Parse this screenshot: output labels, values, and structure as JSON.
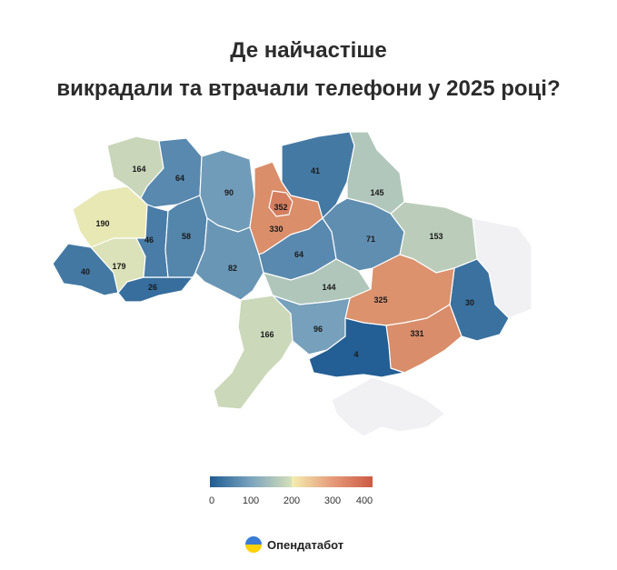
{
  "title_line1": "Де найчастіше",
  "title_line2": "викрадали та втрачали телефони у 2025 році?",
  "map_data": {
    "type": "choropleth",
    "scale": {
      "min": 0,
      "max": 400,
      "ticks": [
        "0",
        "100",
        "200",
        "300",
        "400"
      ]
    },
    "colors": {
      "low": "#1f5b92",
      "mid_low": "#7aa3bd",
      "mid": "#d6dfb9",
      "mid_high": "#f3eeb0",
      "high": "#cc5a45",
      "no_data": "#f1f1f4"
    },
    "regions": [
      {
        "id": "volyn",
        "value": 164
      },
      {
        "id": "rivne",
        "value": 64
      },
      {
        "id": "zhytomyr",
        "value": 90
      },
      {
        "id": "kyiv_city",
        "value": 352
      },
      {
        "id": "kyiv_oblast",
        "value": 330
      },
      {
        "id": "chernihiv",
        "value": 41
      },
      {
        "id": "sumy",
        "value": 145
      },
      {
        "id": "lviv",
        "value": 190
      },
      {
        "id": "ternopil",
        "value": 46
      },
      {
        "id": "khmelnytskyi",
        "value": 58
      },
      {
        "id": "vinnytsia",
        "value": 82
      },
      {
        "id": "cherkasy",
        "value": 64
      },
      {
        "id": "poltava",
        "value": 71
      },
      {
        "id": "kharkiv",
        "value": 153
      },
      {
        "id": "zakarpattia",
        "value": 40
      },
      {
        "id": "ivano_frankivsk",
        "value": 179
      },
      {
        "id": "chernivtsi",
        "value": 26
      },
      {
        "id": "kirovohrad",
        "value": 144
      },
      {
        "id": "dnipropetrovsk",
        "value": 325
      },
      {
        "id": "luhansk",
        "value": 30
      },
      {
        "id": "mykolaiv",
        "value": 96
      },
      {
        "id": "zaporizhzhia",
        "value": 331
      },
      {
        "id": "odesa",
        "value": 166
      },
      {
        "id": "kherson",
        "value": 4
      },
      {
        "id": "donetsk",
        "value": null
      },
      {
        "id": "crimea",
        "value": null
      }
    ]
  },
  "brand_name": "Опендатабот"
}
